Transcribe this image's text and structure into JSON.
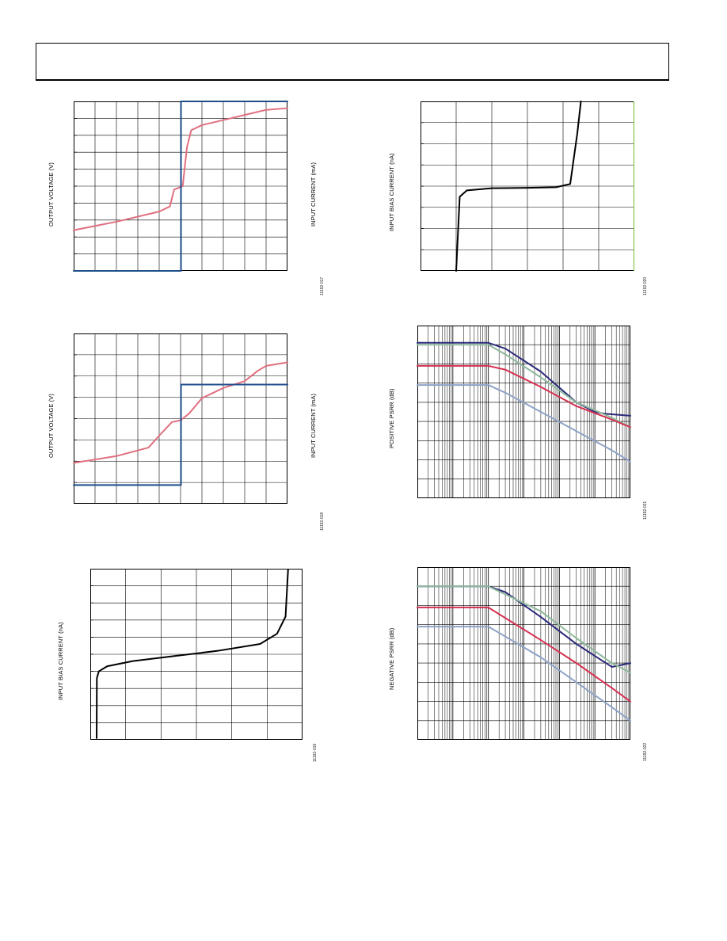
{
  "figures": [
    {
      "id": "fig17",
      "ylabel": "OUTPUT VOLTAGE (V)",
      "y2label": "INPUT CURRENT (mA)",
      "fig_id": "11192-017"
    },
    {
      "id": "fig18",
      "ylabel": "OUTPUT VOLTAGE (V)",
      "y2label": "INPUT CURRENT (mA)",
      "fig_id": "11192-018"
    },
    {
      "id": "fig19",
      "ylabel": "INPUT BIAS CURRENT (nA)",
      "fig_id": "11192-019"
    },
    {
      "id": "fig20",
      "ylabel": "INPUT BIAS CURRENT (nA)",
      "fig_id": "11192-020"
    },
    {
      "id": "fig21",
      "ylabel": "POSITIVE PSRR (dB)",
      "fig_id": "11192-021"
    },
    {
      "id": "fig22",
      "ylabel": "NEGATIVE PSRR (dB)",
      "fig_id": "11192-022"
    }
  ],
  "chart_data": [
    {
      "type": "line",
      "ylabel": "OUTPUT VOLTAGE (V)",
      "y2label": "INPUT CURRENT (mA)",
      "grid": true,
      "xlim": [
        0,
        10
      ],
      "ylim": [
        0,
        10
      ],
      "series": [
        {
          "color": "#e07080",
          "x": [
            0,
            2,
            4,
            4.5,
            4.7,
            4.9,
            5.1,
            5.3,
            5.5,
            6,
            7,
            8,
            9,
            10
          ],
          "y": [
            2.4,
            2.9,
            3.5,
            3.8,
            4.8,
            4.9,
            5.0,
            7.3,
            8.3,
            8.6,
            8.9,
            9.2,
            9.5,
            9.6
          ]
        },
        {
          "color": "#1f4e8c",
          "x": [
            0,
            5.02,
            5.02,
            10
          ],
          "y": [
            0,
            0,
            10,
            10
          ]
        }
      ]
    },
    {
      "type": "line",
      "ylabel": "OUTPUT VOLTAGE (V)",
      "y2label": "INPUT CURRENT (mA)",
      "grid": true,
      "xlim": [
        0,
        10
      ],
      "ylim": [
        0,
        10
      ],
      "series": [
        {
          "color": "#e07080",
          "x": [
            0,
            2,
            3.5,
            4,
            4.6,
            5,
            5.4,
            6,
            7,
            8,
            8.6,
            9,
            10
          ],
          "y": [
            2.4,
            2.8,
            3.3,
            4.0,
            4.8,
            4.9,
            5.3,
            6.2,
            6.8,
            7.2,
            7.8,
            8.1,
            8.3
          ]
        },
        {
          "color": "#1f4e8c",
          "x": [
            0,
            5.02,
            5.02,
            10
          ],
          "y": [
            1.1,
            1.1,
            7.0,
            7.0
          ]
        }
      ]
    },
    {
      "type": "line",
      "ylabel": "INPUT BIAS CURRENT (nA)",
      "grid": true,
      "xlim": [
        0,
        10
      ],
      "ylim": [
        0,
        10
      ],
      "series": [
        {
          "color": "#000000",
          "x": [
            0.3,
            0.31,
            0.4,
            0.8,
            2,
            4,
            6,
            8,
            8.8,
            9.2,
            9.3,
            9.32
          ],
          "y": [
            0.1,
            3.6,
            4.0,
            4.3,
            4.6,
            4.9,
            5.2,
            5.6,
            6.2,
            7.2,
            9.5,
            9.95
          ]
        }
      ]
    },
    {
      "type": "line",
      "ylabel": "INPUT BIAS CURRENT (nA)",
      "grid": true,
      "xlim": [
        0,
        6
      ],
      "ylim": [
        0,
        8
      ],
      "series": [
        {
          "color": "#000000",
          "x": [
            1,
            1.1,
            1.3,
            2,
            3,
            3.8,
            4.2,
            4.4,
            4.5
          ],
          "y": [
            0,
            3.5,
            3.8,
            3.9,
            3.92,
            3.95,
            4.1,
            6.5,
            8
          ]
        }
      ]
    },
    {
      "type": "line",
      "ylabel": "POSITIVE PSRR (dB)",
      "grid": true,
      "xscale": "log",
      "xlim": [
        1,
        1000000
      ],
      "ylim": [
        0,
        9
      ],
      "series": [
        {
          "color": "#2b2a7a",
          "x": [
            1,
            100,
            300,
            3000,
            30000,
            100000,
            200000,
            1000000
          ],
          "y": [
            8.1,
            8.1,
            7.8,
            6.6,
            5.0,
            4.5,
            4.4,
            4.3
          ]
        },
        {
          "color": "#8fb89c",
          "x": [
            1,
            100,
            300,
            3000,
            30000,
            300000,
            1000000
          ],
          "y": [
            8.0,
            8.0,
            7.5,
            6.3,
            5.0,
            4.2,
            3.7
          ]
        },
        {
          "color": "#d63050",
          "x": [
            1,
            100,
            300,
            3000,
            30000,
            300000,
            1000000
          ],
          "y": [
            6.9,
            6.9,
            6.7,
            5.8,
            4.8,
            4.1,
            3.7
          ]
        },
        {
          "color": "#8ea3c6",
          "x": [
            1,
            100,
            300,
            3000,
            30000,
            300000,
            1000000
          ],
          "y": [
            5.9,
            5.9,
            5.5,
            4.5,
            3.5,
            2.5,
            1.9
          ]
        }
      ]
    },
    {
      "type": "line",
      "ylabel": "NEGATIVE PSRR (dB)",
      "grid": true,
      "xscale": "log",
      "xlim": [
        1,
        1000000
      ],
      "ylim": [
        0,
        9
      ],
      "series": [
        {
          "color": "#2b2a7a",
          "x": [
            1,
            100,
            300,
            3000,
            30000,
            300000,
            1000000
          ],
          "y": [
            8.0,
            8.0,
            7.7,
            6.4,
            5.0,
            3.8,
            4.0
          ]
        },
        {
          "color": "#8fb89c",
          "x": [
            1,
            100,
            3000,
            30000,
            300000,
            1000000
          ],
          "y": [
            8.0,
            8.0,
            6.7,
            5.3,
            4.0,
            3.5
          ]
        },
        {
          "color": "#d63050",
          "x": [
            1,
            100,
            3000,
            30000,
            300000,
            1000000
          ],
          "y": [
            6.9,
            6.9,
            5.2,
            4.0,
            2.7,
            2.0
          ]
        },
        {
          "color": "#8ea3c6",
          "x": [
            1,
            100,
            3000,
            30000,
            300000,
            1000000
          ],
          "y": [
            5.9,
            5.9,
            4.3,
            3.0,
            1.7,
            1.0
          ]
        }
      ]
    }
  ]
}
